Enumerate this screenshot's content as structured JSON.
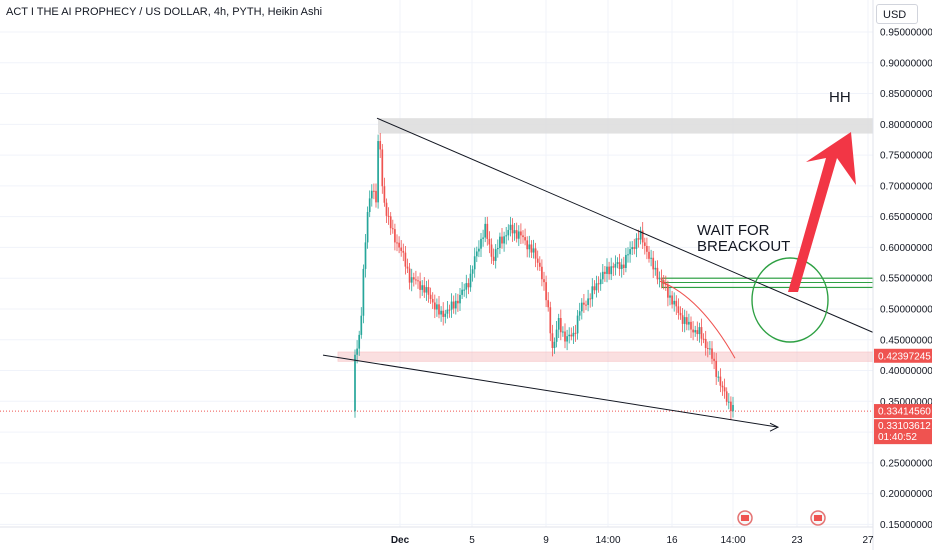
{
  "header": {
    "title": "ACT I THE AI PROPHECY / US DOLLAR, 4h, PYTH, Heikin Ashi",
    "currency": "USD"
  },
  "colors": {
    "up": "#26a69a",
    "down": "#ef5350",
    "arrow": "#f23645",
    "circle": "#2ea043",
    "zone_gray": "#dcdcdc",
    "zone_red": "#f7c6c8",
    "line": "#131722"
  },
  "annotations": {
    "hh": "HH",
    "wait_line1": "WAIT FOR",
    "wait_line2": "BREACKOUT"
  },
  "price_tags": {
    "level": "0.42397245",
    "last": "0.33414560",
    "close": "0.33103612",
    "countdown": "01:40:52"
  },
  "chart_data": {
    "type": "candlestick",
    "title": "ACT I THE AI PROPHECY / US DOLLAR, 4h, PYTH, Heikin Ashi",
    "y_ticks": [
      "0.95000000",
      "0.90000000",
      "0.85000000",
      "0.80000000",
      "0.75000000",
      "0.70000000",
      "0.65000000",
      "0.60000000",
      "0.55000000",
      "0.50000000",
      "0.45000000",
      "0.40000000",
      "0.35000000",
      "0.30000000",
      "0.25000000",
      "0.20000000",
      "0.15000000"
    ],
    "x_ticks": [
      "Dec",
      "5",
      "9",
      "14:00",
      "16",
      "14:00",
      "23",
      "27"
    ],
    "ylim": [
      0.15,
      0.97
    ],
    "approx_key_points": [
      {
        "label": "start",
        "value": 0.42
      },
      {
        "label": "peak",
        "value": 0.81
      },
      {
        "label": "low_mid",
        "value": 0.43
      },
      {
        "label": "local_high",
        "value": 0.635
      },
      {
        "label": "current",
        "value": 0.334
      }
    ],
    "levels": {
      "resistance_zone": [
        0.785,
        0.81
      ],
      "support_zone": [
        0.415,
        0.43
      ],
      "breakout_zone": [
        0.535,
        0.55
      ]
    }
  }
}
